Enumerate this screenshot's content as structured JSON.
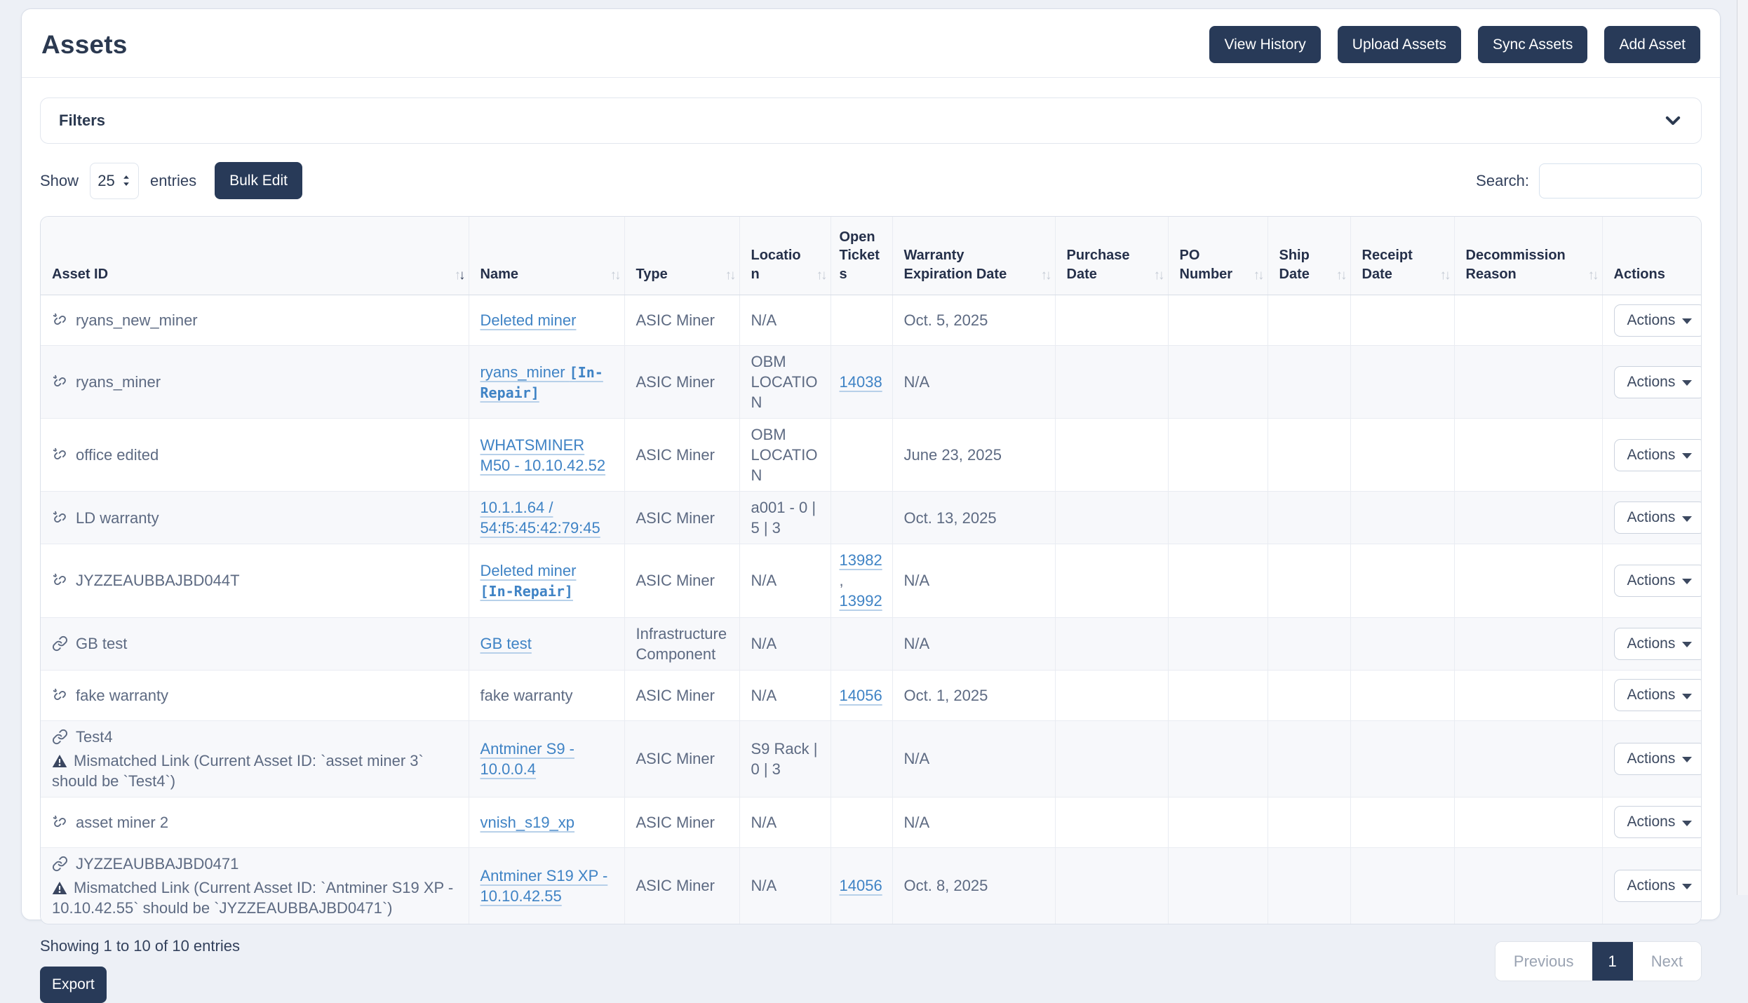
{
  "page_title": "Assets",
  "header_buttons": [
    {
      "label": "View History"
    },
    {
      "label": "Upload Assets"
    },
    {
      "label": "Sync Assets"
    },
    {
      "label": "Add Asset"
    }
  ],
  "filters": {
    "label": "Filters"
  },
  "controls": {
    "show_label": "Show",
    "page_size": "25",
    "entries_label": "entries",
    "bulk_edit_label": "Bulk Edit",
    "search_label": "Search:",
    "search_value": ""
  },
  "table": {
    "columns": [
      {
        "key": "asset_id",
        "label": "Asset ID",
        "sort": "desc"
      },
      {
        "key": "name",
        "label": "Name",
        "sort": "none"
      },
      {
        "key": "type",
        "label": "Type",
        "sort": "none"
      },
      {
        "key": "location",
        "label": "Location",
        "sort": "none"
      },
      {
        "key": "open_tickets",
        "label": "Open Tickets",
        "sort": null
      },
      {
        "key": "warranty_expiration_date",
        "label": "Warranty Expiration Date",
        "sort": "none"
      },
      {
        "key": "purchase_date",
        "label": "Purchase Date",
        "sort": "none"
      },
      {
        "key": "po_number",
        "label": "PO Number",
        "sort": "none"
      },
      {
        "key": "ship_date",
        "label": "Ship Date",
        "sort": "none"
      },
      {
        "key": "receipt_date",
        "label": "Receipt Date",
        "sort": "none"
      },
      {
        "key": "decommission_reason",
        "label": "Decommission Reason",
        "sort": "none"
      },
      {
        "key": "actions",
        "label": "Actions",
        "sort": null
      }
    ],
    "rows": [
      {
        "asset_id": {
          "icon": "unlink-icon",
          "text": "ryans_new_miner",
          "warning": null
        },
        "name": {
          "text": "Deleted miner",
          "link": true,
          "badge": null
        },
        "type": "ASIC Miner",
        "location": "N/A",
        "open_tickets": [],
        "warranty_expiration_date": "Oct. 5, 2025",
        "purchase_date": "",
        "po_number": "",
        "ship_date": "",
        "receipt_date": "",
        "decommission_reason": "",
        "actions_label": "Actions"
      },
      {
        "asset_id": {
          "icon": "unlink-icon",
          "text": "ryans_miner",
          "warning": null
        },
        "name": {
          "text": "ryans_miner",
          "link": true,
          "badge": "[In-Repair]"
        },
        "type": "ASIC Miner",
        "location": "OBM LOCATION",
        "open_tickets": [
          "14038"
        ],
        "warranty_expiration_date": "N/A",
        "purchase_date": "",
        "po_number": "",
        "ship_date": "",
        "receipt_date": "",
        "decommission_reason": "",
        "actions_label": "Actions"
      },
      {
        "asset_id": {
          "icon": "unlink-icon",
          "text": "office edited",
          "warning": null
        },
        "name": {
          "text": "WHATSMINER M50 - 10.10.42.52",
          "link": true,
          "badge": null
        },
        "type": "ASIC Miner",
        "location": "OBM LOCATION",
        "open_tickets": [],
        "warranty_expiration_date": "June 23, 2025",
        "purchase_date": "",
        "po_number": "",
        "ship_date": "",
        "receipt_date": "",
        "decommission_reason": "",
        "actions_label": "Actions"
      },
      {
        "asset_id": {
          "icon": "unlink-icon",
          "text": "LD warranty",
          "warning": null
        },
        "name": {
          "text": "10.1.1.64 / 54:f5:45:42:79:45",
          "link": true,
          "badge": null
        },
        "type": "ASIC Miner",
        "location": "a001 - 0 | 5 | 3",
        "open_tickets": [],
        "warranty_expiration_date": "Oct. 13, 2025",
        "purchase_date": "",
        "po_number": "",
        "ship_date": "",
        "receipt_date": "",
        "decommission_reason": "",
        "actions_label": "Actions"
      },
      {
        "asset_id": {
          "icon": "unlink-icon",
          "text": "JYZZEAUBBAJBD044T",
          "warning": null
        },
        "name": {
          "text": "Deleted miner",
          "link": true,
          "badge": "[In-Repair]"
        },
        "type": "ASIC Miner",
        "location": "N/A",
        "open_tickets": [
          "13982",
          "13992"
        ],
        "warranty_expiration_date": "N/A",
        "purchase_date": "",
        "po_number": "",
        "ship_date": "",
        "receipt_date": "",
        "decommission_reason": "",
        "actions_label": "Actions"
      },
      {
        "asset_id": {
          "icon": "link-icon",
          "text": "GB test",
          "warning": null
        },
        "name": {
          "text": "GB test",
          "link": true,
          "badge": null
        },
        "type": "Infrastructure Component",
        "location": "N/A",
        "open_tickets": [],
        "warranty_expiration_date": "N/A",
        "purchase_date": "",
        "po_number": "",
        "ship_date": "",
        "receipt_date": "",
        "decommission_reason": "",
        "actions_label": "Actions"
      },
      {
        "asset_id": {
          "icon": "unlink-icon",
          "text": "fake warranty",
          "warning": null
        },
        "name": {
          "text": "fake warranty",
          "link": false,
          "badge": null
        },
        "type": "ASIC Miner",
        "location": "N/A",
        "open_tickets": [
          "14056"
        ],
        "warranty_expiration_date": "Oct. 1, 2025",
        "purchase_date": "",
        "po_number": "",
        "ship_date": "",
        "receipt_date": "",
        "decommission_reason": "",
        "actions_label": "Actions"
      },
      {
        "asset_id": {
          "icon": "link-icon",
          "text": "Test4",
          "warning": "Mismatched Link (Current Asset ID: `asset miner 3` should be `Test4`)"
        },
        "name": {
          "text": "Antminer S9 - 10.0.0.4",
          "link": true,
          "badge": null
        },
        "type": "ASIC Miner",
        "location": "S9 Rack | 0 | 3",
        "open_tickets": [],
        "warranty_expiration_date": "N/A",
        "purchase_date": "",
        "po_number": "",
        "ship_date": "",
        "receipt_date": "",
        "decommission_reason": "",
        "actions_label": "Actions"
      },
      {
        "asset_id": {
          "icon": "unlink-icon",
          "text": "asset miner 2",
          "warning": null
        },
        "name": {
          "text": "vnish_s19_xp",
          "link": true,
          "badge": null
        },
        "type": "ASIC Miner",
        "location": "N/A",
        "open_tickets": [],
        "warranty_expiration_date": "N/A",
        "purchase_date": "",
        "po_number": "",
        "ship_date": "",
        "receipt_date": "",
        "decommission_reason": "",
        "actions_label": "Actions"
      },
      {
        "asset_id": {
          "icon": "link-icon",
          "text": "JYZZEAUBBAJBD0471",
          "warning": "Mismatched Link (Current Asset ID: `Antminer S19 XP - 10.10.42.55` should be `JYZZEAUBBAJBD0471`)"
        },
        "name": {
          "text": "Antminer S19 XP - 10.10.42.55",
          "link": true,
          "badge": null
        },
        "type": "ASIC Miner",
        "location": "N/A",
        "open_tickets": [
          "14056"
        ],
        "warranty_expiration_date": "Oct. 8, 2025",
        "purchase_date": "",
        "po_number": "",
        "ship_date": "",
        "receipt_date": "",
        "decommission_reason": "",
        "actions_label": "Actions"
      }
    ]
  },
  "footer": {
    "showing_text": "Showing 1 to 10 of 10 entries",
    "export_label": "Export"
  },
  "pagination": {
    "previous_label": "Previous",
    "page": "1",
    "next_label": "Next"
  },
  "colors": {
    "primary_navy": "#283a58",
    "link_blue": "#3f83c5",
    "page_background": "#edf0f6"
  }
}
